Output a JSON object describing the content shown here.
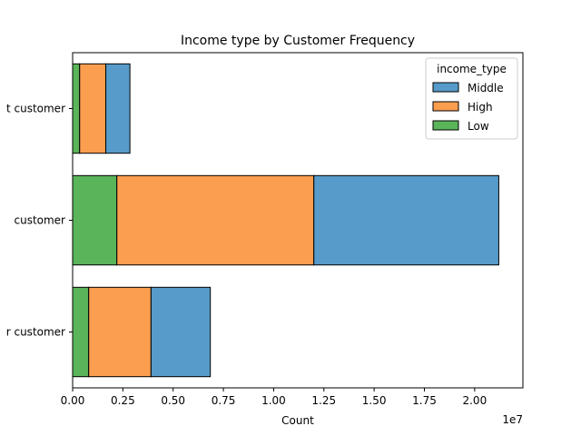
{
  "chart_data": {
    "type": "bar",
    "orientation": "horizontal",
    "stacked": true,
    "title": "Income type by Customer Frequency",
    "xlabel": "Count",
    "ylabel": "",
    "x_offset_text": "1e7",
    "xlim": [
      0,
      22400000
    ],
    "x_ticks": [
      0,
      2500000,
      5000000,
      7500000,
      10000000,
      12500000,
      15000000,
      17500000,
      20000000
    ],
    "x_tick_labels": [
      "0.00",
      "0.25",
      "0.50",
      "0.75",
      "1.00",
      "1.25",
      "1.50",
      "1.75",
      "2.00"
    ],
    "categories": [
      "t customer",
      "customer",
      "r customer"
    ],
    "series": [
      {
        "name": "Low",
        "color": "#5ab45a",
        "values": [
          350000,
          2200000,
          800000
        ]
      },
      {
        "name": "High",
        "color": "#fc9e4f",
        "values": [
          1300000,
          9800000,
          3100000
        ]
      },
      {
        "name": "Middle",
        "color": "#569bc9",
        "values": [
          1200000,
          9200000,
          2950000
        ]
      }
    ],
    "legend": {
      "title": "income_type",
      "entries": [
        "Middle",
        "High",
        "Low"
      ],
      "placement": "upper right"
    },
    "grid": false
  }
}
